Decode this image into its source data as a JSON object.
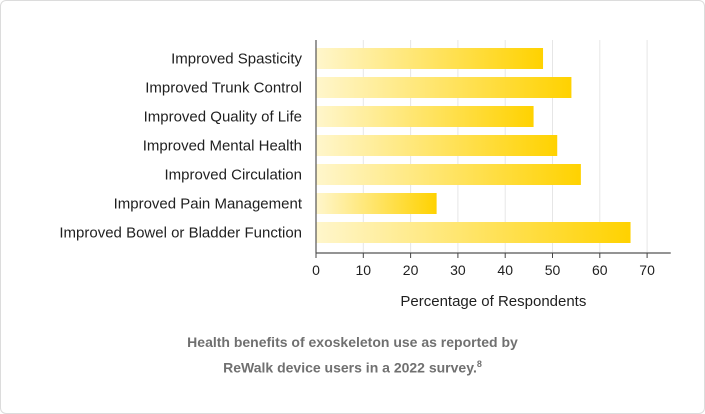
{
  "chart_data": {
    "type": "bar",
    "orientation": "horizontal",
    "categories": [
      "Improved Spasticity",
      "Improved Trunk Control",
      "Improved Quality of Life",
      "Improved Mental Health",
      "Improved Circulation",
      "Improved Pain Management",
      "Improved Bowel or Bladder Function"
    ],
    "values": [
      48,
      54,
      46,
      51,
      56,
      25.5,
      66.5
    ],
    "xlabel": "Percentage of Respondents",
    "xlim": [
      0,
      75
    ],
    "xticks": [
      0,
      10,
      20,
      30,
      40,
      50,
      60,
      70
    ],
    "grid": "vertical",
    "bar_color_start": "#fff6cc",
    "bar_color_end": "#ffd200"
  },
  "caption": {
    "line1": "Health benefits of exoskeleton use as reported by",
    "line2": "ReWalk device users in a 2022 survey.",
    "footnote": "8"
  }
}
